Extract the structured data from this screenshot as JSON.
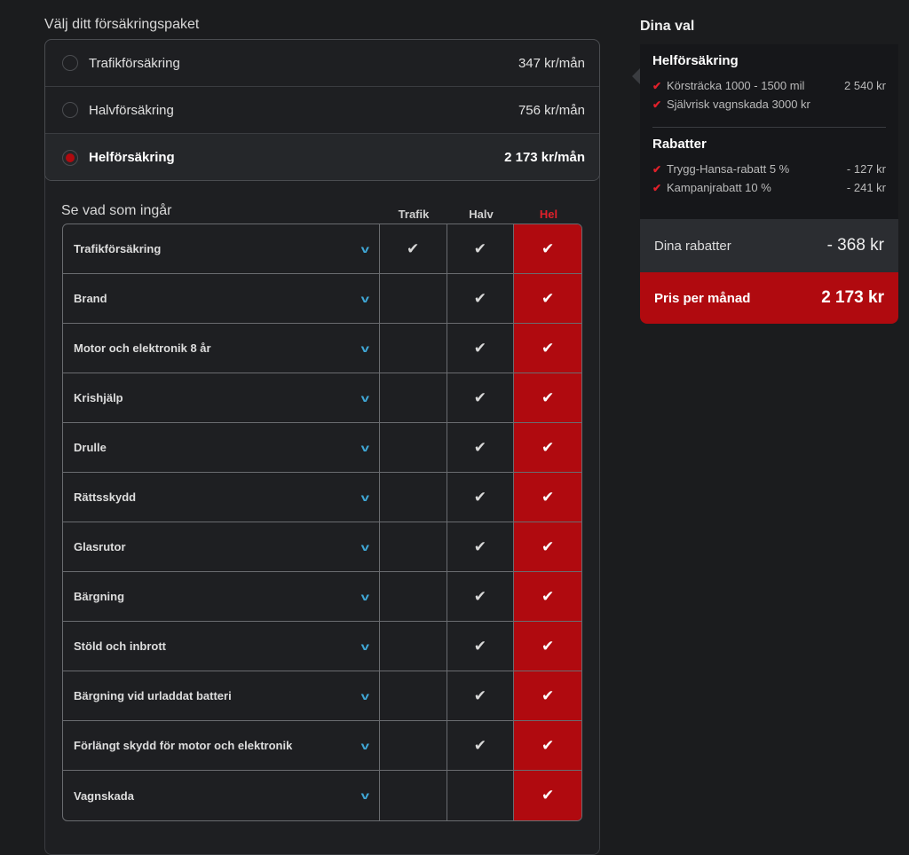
{
  "left": {
    "title": "Välj ditt försäkringspaket",
    "options": [
      {
        "label": "Trafikförsäkring",
        "price": "347 kr/mån",
        "selected": false
      },
      {
        "label": "Halvförsäkring",
        "price": "756 kr/mån",
        "selected": false
      },
      {
        "label": "Helförsäkring",
        "price": "2 173 kr/mån",
        "selected": true
      }
    ],
    "included_title": "Se vad som ingår",
    "columns": [
      "Trafik",
      "Halv",
      "Hel"
    ],
    "rows": [
      {
        "label": "Trafikförsäkring",
        "trafik": true,
        "halv": true,
        "hel": true
      },
      {
        "label": "Brand",
        "trafik": false,
        "halv": true,
        "hel": true
      },
      {
        "label": "Motor och elektronik 8 år",
        "trafik": false,
        "halv": true,
        "hel": true
      },
      {
        "label": "Krishjälp",
        "trafik": false,
        "halv": true,
        "hel": true
      },
      {
        "label": "Drulle",
        "trafik": false,
        "halv": true,
        "hel": true
      },
      {
        "label": "Rättsskydd",
        "trafik": false,
        "halv": true,
        "hel": true
      },
      {
        "label": "Glasrutor",
        "trafik": false,
        "halv": true,
        "hel": true
      },
      {
        "label": "Bärgning",
        "trafik": false,
        "halv": true,
        "hel": true
      },
      {
        "label": "Stöld och inbrott",
        "trafik": false,
        "halv": true,
        "hel": true
      },
      {
        "label": "Bärgning vid urladdat batteri",
        "trafik": false,
        "halv": true,
        "hel": true
      },
      {
        "label": "Förlängt skydd för motor och elektronik",
        "trafik": false,
        "halv": true,
        "hel": true
      },
      {
        "label": "Vagnskada",
        "trafik": false,
        "halv": false,
        "hel": true
      }
    ]
  },
  "right": {
    "title": "Dina val",
    "package": {
      "title": "Helförsäkring",
      "items": [
        {
          "label": "Körsträcka 1000 - 1500 mil",
          "value": "2 540 kr"
        },
        {
          "label": "Självrisk vagnskada 3000 kr",
          "value": ""
        }
      ]
    },
    "discounts": {
      "title": "Rabatter",
      "items": [
        {
          "label": "Trygg-Hansa-rabatt 5 %",
          "value": "- 127 kr"
        },
        {
          "label": "Kampanjrabatt 10 %",
          "value": "- 241 kr"
        }
      ]
    },
    "summary": {
      "label": "Dina rabatter",
      "value": "- 368 kr"
    },
    "total": {
      "label": "Pris per månad",
      "value": "2 173 kr"
    }
  },
  "colors": {
    "accent": "#b00a0f",
    "background": "#1b1c1e",
    "chevron": "#3fa7d6"
  }
}
